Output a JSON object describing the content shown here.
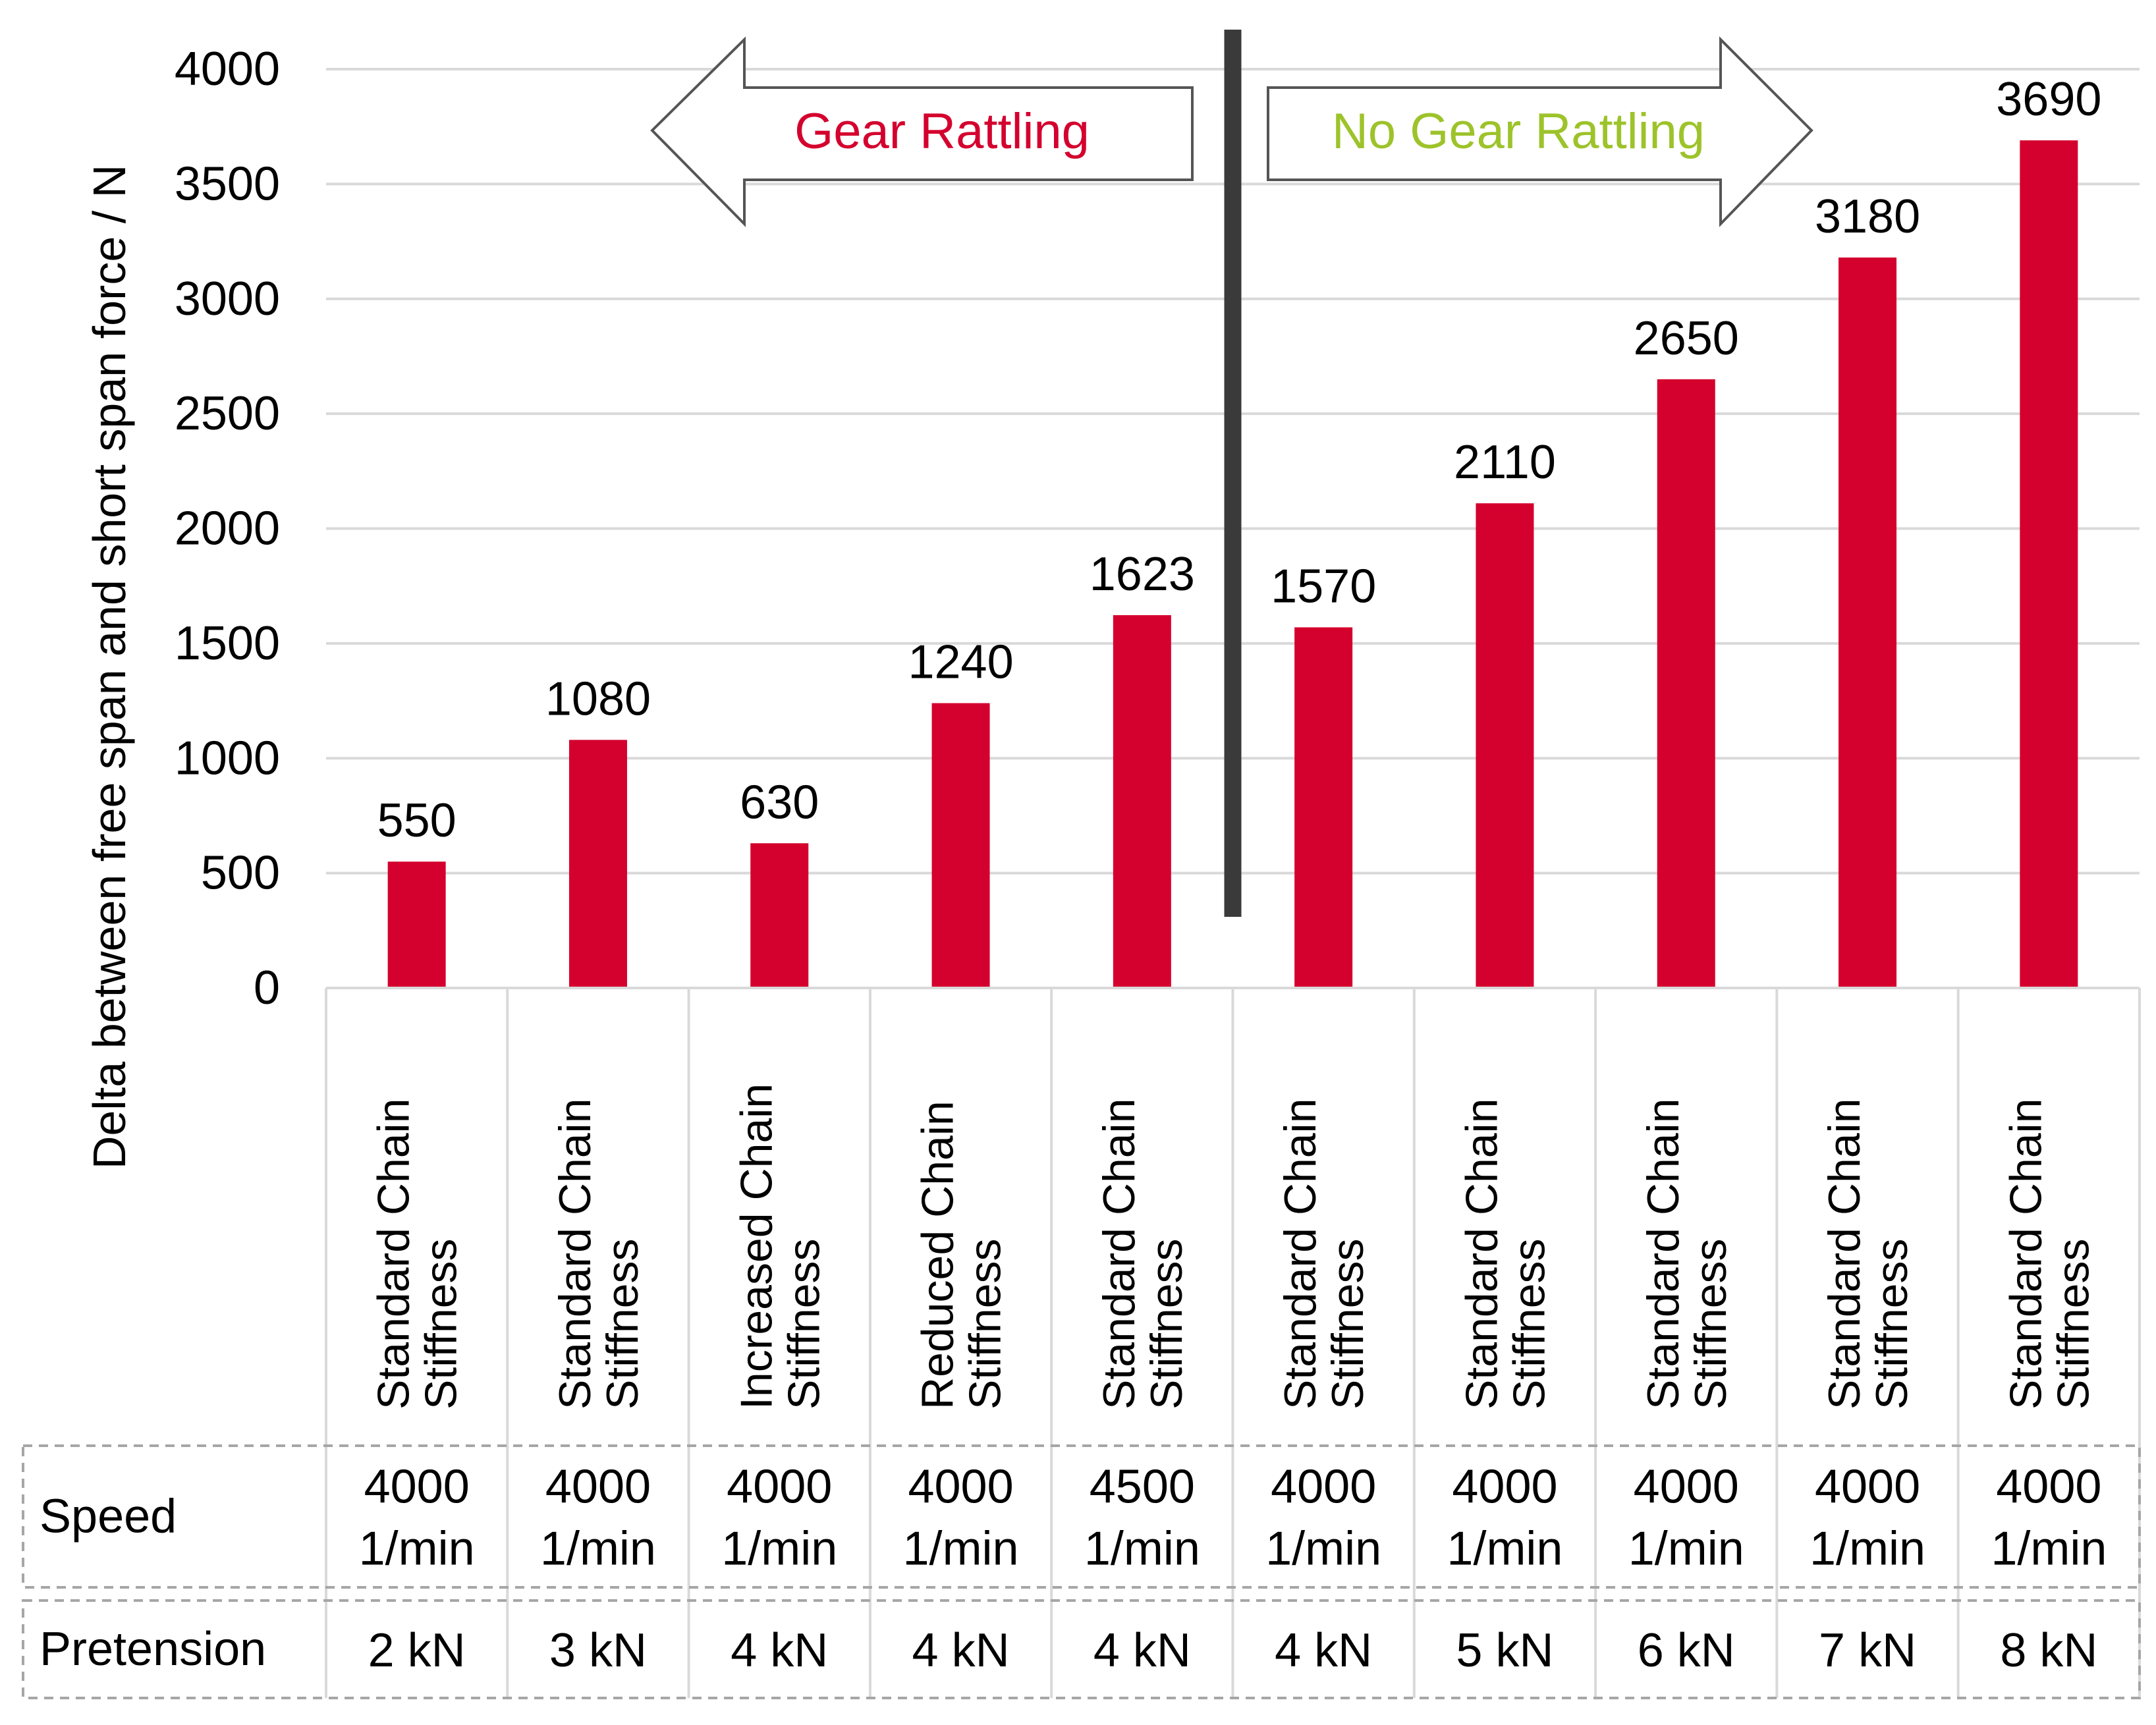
{
  "chart_data": {
    "type": "bar",
    "title": "",
    "ylabel": "Delta between free span and short span force / N",
    "xlabel": "",
    "ylim": [
      0,
      4000
    ],
    "yticks": [
      0,
      500,
      1000,
      1500,
      2000,
      2500,
      3000,
      3500,
      4000
    ],
    "grid": true,
    "legend": "none",
    "bar_color": "#d4002e",
    "categories": [
      "Standard Chain Stiffness",
      "Standard Chain Stiffness",
      "Increased Chain Stiffness",
      "Reduced Chain Stiffness",
      "Standard Chain Stiffness",
      "Standard Chain Stiffness",
      "Standard Chain Stiffness",
      "Standard Chain Stiffness",
      "Standard Chain Stiffness",
      "Standard Chain Stiffness"
    ],
    "category_lines": [
      [
        "Standard Chain",
        "Stiffness"
      ],
      [
        "Standard Chain",
        "Stiffness"
      ],
      [
        "Increased Chain",
        "Stiffness"
      ],
      [
        "Reduced Chain",
        "Stiffness"
      ],
      [
        "Standard Chain",
        "Stiffness"
      ],
      [
        "Standard Chain",
        "Stiffness"
      ],
      [
        "Standard Chain",
        "Stiffness"
      ],
      [
        "Standard Chain",
        "Stiffness"
      ],
      [
        "Standard Chain",
        "Stiffness"
      ],
      [
        "Standard Chain",
        "Stiffness"
      ]
    ],
    "values": [
      550,
      1080,
      630,
      1240,
      1623,
      1570,
      2110,
      2650,
      3180,
      3690
    ],
    "annotations": {
      "left_arrow_text": "Gear Rattling",
      "left_arrow_color": "#d4002e",
      "right_arrow_text": "No Gear Rattling",
      "right_arrow_color": "#9dc32a",
      "divider_color": "#3a3a3a"
    },
    "table": {
      "rows": [
        {
          "label": "Speed",
          "cells": [
            [
              "4000",
              "1/min"
            ],
            [
              "4000",
              "1/min"
            ],
            [
              "4000",
              "1/min"
            ],
            [
              "4000",
              "1/min"
            ],
            [
              "4500",
              "1/min"
            ],
            [
              "4000",
              "1/min"
            ],
            [
              "4000",
              "1/min"
            ],
            [
              "4000",
              "1/min"
            ],
            [
              "4000",
              "1/min"
            ],
            [
              "4000",
              "1/min"
            ]
          ]
        },
        {
          "label": "Pretension",
          "cells": [
            [
              "2 kN"
            ],
            [
              "3 kN"
            ],
            [
              "4 kN"
            ],
            [
              "4 kN"
            ],
            [
              "4 kN"
            ],
            [
              "4 kN"
            ],
            [
              "5 kN"
            ],
            [
              "6 kN"
            ],
            [
              "7 kN"
            ],
            [
              "8 kN"
            ]
          ]
        }
      ]
    }
  }
}
